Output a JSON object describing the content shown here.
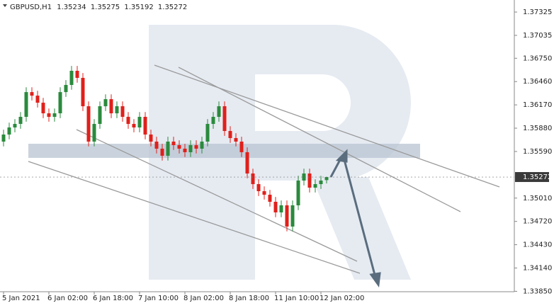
{
  "chart_data": {
    "type": "candlestick",
    "symbol": "GBPUSD,H1",
    "up_color": "#2a8a3c",
    "down_color": "#e0201b",
    "ylim": [
      1.33845,
      1.37475
    ],
    "yticks": [
      {
        "value": 1.37325,
        "label": "1.37325"
      },
      {
        "value": 1.37035,
        "label": "1.37035"
      },
      {
        "value": 1.3675,
        "label": "1.36750"
      },
      {
        "value": 1.3646,
        "label": "1.36460"
      },
      {
        "value": 1.3617,
        "label": "1.36170"
      },
      {
        "value": 1.3588,
        "label": "1.35880"
      },
      {
        "value": 1.3559,
        "label": "1.35590"
      },
      {
        "value": 1.3501,
        "label": "1.35010"
      },
      {
        "value": 1.3472,
        "label": "1.34720"
      },
      {
        "value": 1.3443,
        "label": "1.34430"
      },
      {
        "value": 1.3414,
        "label": "1.34140"
      },
      {
        "value": 1.3385,
        "label": "1.33850"
      }
    ],
    "xticks": [
      {
        "value": 0,
        "label": "5 Jan 2021"
      },
      {
        "value": 8,
        "label": "6 Jan 02:00"
      },
      {
        "value": 16,
        "label": "6 Jan 18:00"
      },
      {
        "value": 24,
        "label": "7 Jan 10:00"
      },
      {
        "value": 32,
        "label": "8 Jan 02:00"
      },
      {
        "value": 40,
        "label": "8 Jan 18:00"
      },
      {
        "value": 48,
        "label": "11 Jan 10:00"
      },
      {
        "value": 56,
        "label": "12 Jan 02:00"
      }
    ],
    "candles": [
      [
        1.35713,
        1.35861,
        1.35653,
        1.35801
      ],
      [
        1.35801,
        1.35949,
        1.35741,
        1.35889
      ],
      [
        1.35889,
        1.35993,
        1.35829,
        1.35933
      ],
      [
        1.35933,
        1.36081,
        1.35873,
        1.36021
      ],
      [
        1.36021,
        1.36389,
        1.35961,
        1.36329
      ],
      [
        1.36329,
        1.36389,
        1.36225,
        1.36285
      ],
      [
        1.36285,
        1.36345,
        1.36137,
        1.36197
      ],
      [
        1.36197,
        1.36257,
        1.36005,
        1.36065
      ],
      [
        1.36065,
        1.36125,
        1.35961,
        1.36021
      ],
      [
        1.36021,
        1.36125,
        1.35961,
        1.36065
      ],
      [
        1.36065,
        1.36389,
        1.36005,
        1.36329
      ],
      [
        1.36329,
        1.36478,
        1.36269,
        1.36418
      ],
      [
        1.36418,
        1.36654,
        1.36358,
        1.36594
      ],
      [
        1.36594,
        1.36654,
        1.36446,
        1.36506
      ],
      [
        1.36506,
        1.36566,
        1.36093,
        1.36153
      ],
      [
        1.36153,
        1.36213,
        1.35653,
        1.35713
      ],
      [
        1.35713,
        1.35993,
        1.35653,
        1.35933
      ],
      [
        1.35933,
        1.36213,
        1.35873,
        1.36153
      ],
      [
        1.36153,
        1.36301,
        1.36093,
        1.36241
      ],
      [
        1.36241,
        1.36301,
        1.36005,
        1.36065
      ],
      [
        1.36065,
        1.36213,
        1.36005,
        1.36153
      ],
      [
        1.36153,
        1.36213,
        1.35961,
        1.36021
      ],
      [
        1.36021,
        1.36081,
        1.35873,
        1.35933
      ],
      [
        1.35933,
        1.35993,
        1.35829,
        1.35889
      ],
      [
        1.35889,
        1.36081,
        1.35829,
        1.36021
      ],
      [
        1.36021,
        1.36081,
        1.35741,
        1.35801
      ],
      [
        1.35801,
        1.35861,
        1.35653,
        1.35713
      ],
      [
        1.35713,
        1.35773,
        1.35565,
        1.35625
      ],
      [
        1.35625,
        1.35685,
        1.35477,
        1.35537
      ],
      [
        1.35537,
        1.35773,
        1.35477,
        1.35713
      ],
      [
        1.35713,
        1.35773,
        1.35609,
        1.35669
      ],
      [
        1.35669,
        1.35729,
        1.35565,
        1.35625
      ],
      [
        1.35625,
        1.35685,
        1.35521,
        1.35581
      ],
      [
        1.35581,
        1.35729,
        1.35521,
        1.35669
      ],
      [
        1.35669,
        1.35729,
        1.35565,
        1.35625
      ],
      [
        1.35625,
        1.35773,
        1.35565,
        1.35713
      ],
      [
        1.35713,
        1.35993,
        1.35653,
        1.35933
      ],
      [
        1.35933,
        1.36081,
        1.35873,
        1.36021
      ],
      [
        1.36021,
        1.36213,
        1.35961,
        1.36153
      ],
      [
        1.36153,
        1.36213,
        1.35785,
        1.35845
      ],
      [
        1.35845,
        1.35905,
        1.35697,
        1.35757
      ],
      [
        1.35757,
        1.35817,
        1.35653,
        1.35713
      ],
      [
        1.35713,
        1.35773,
        1.35521,
        1.35581
      ],
      [
        1.35581,
        1.35641,
        1.35256,
        1.35316
      ],
      [
        1.35316,
        1.35376,
        1.35124,
        1.35184
      ],
      [
        1.35184,
        1.35244,
        1.35036,
        1.35096
      ],
      [
        1.35096,
        1.35156,
        1.34992,
        1.35052
      ],
      [
        1.35052,
        1.35112,
        1.34904,
        1.34964
      ],
      [
        1.34964,
        1.35024,
        1.34772,
        1.34832
      ],
      [
        1.34832,
        1.3498,
        1.34772,
        1.3492
      ],
      [
        1.3492,
        1.3498,
        1.34596,
        1.34656
      ],
      [
        1.34656,
        1.3498,
        1.34596,
        1.3492
      ],
      [
        1.3492,
        1.35288,
        1.3486,
        1.35228
      ],
      [
        1.35228,
        1.35376,
        1.35168,
        1.35316
      ],
      [
        1.35316,
        1.35376,
        1.3508,
        1.3514
      ],
      [
        1.3514,
        1.35244,
        1.3508,
        1.35184
      ],
      [
        1.35184,
        1.35288,
        1.35124,
        1.35228
      ],
      [
        1.35234,
        1.35275,
        1.35192,
        1.35272
      ]
    ]
  }
}
